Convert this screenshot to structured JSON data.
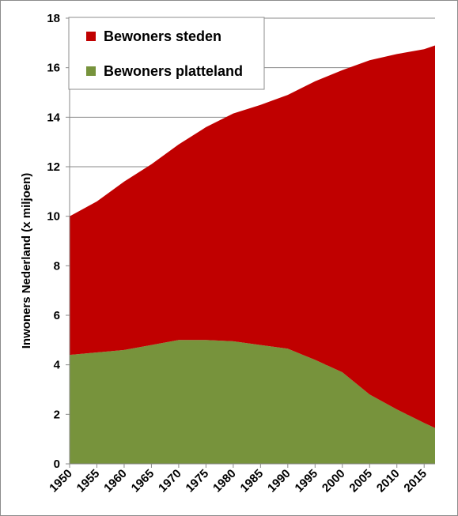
{
  "chart_data": {
    "type": "area",
    "stacked": true,
    "title": "",
    "xlabel": "",
    "ylabel": "Inwoners Nederland (x miljoen)",
    "ylim": [
      0,
      18
    ],
    "yticks": [
      0,
      2,
      4,
      6,
      8,
      10,
      12,
      14,
      16,
      18
    ],
    "xlim": [
      1950,
      2017
    ],
    "xticks": [
      1950,
      1955,
      1960,
      1965,
      1970,
      1975,
      1980,
      1985,
      1990,
      1995,
      2000,
      2005,
      2010,
      2015
    ],
    "grid": true,
    "legend_position": "top-left",
    "x": [
      1950,
      1955,
      1960,
      1965,
      1970,
      1975,
      1980,
      1985,
      1990,
      1995,
      2000,
      2005,
      2010,
      2015,
      2017
    ],
    "series": [
      {
        "name": "Bewoners platteland",
        "color": "#77933c",
        "values": [
          4.4,
          4.5,
          4.6,
          4.8,
          5.0,
          5.0,
          4.95,
          4.8,
          4.65,
          4.2,
          3.7,
          2.8,
          2.2,
          1.65,
          1.45
        ]
      },
      {
        "name": "Bewoners steden",
        "color": "#c00000",
        "values": [
          5.6,
          6.1,
          6.8,
          7.3,
          7.9,
          8.6,
          9.2,
          9.7,
          10.25,
          11.25,
          12.2,
          13.5,
          14.35,
          15.1,
          15.45
        ]
      }
    ]
  }
}
